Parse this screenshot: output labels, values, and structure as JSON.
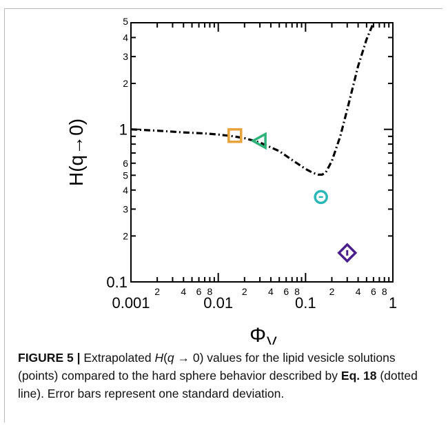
{
  "chart_data": {
    "type": "scatter",
    "xscale": "log",
    "yscale": "log",
    "xlim": [
      0.001,
      1
    ],
    "ylim": [
      0.1,
      5
    ],
    "xlabel": "Φ",
    "xlabel_sub": "V",
    "ylabel": "H(q→0)",
    "x_major_ticks": [
      {
        "value": 0.001,
        "label": "0.001"
      },
      {
        "value": 0.01,
        "label": "0.01"
      },
      {
        "value": 0.1,
        "label": "0.1"
      },
      {
        "value": 1,
        "label": "1"
      }
    ],
    "x_minor_tick_labels": [
      "2",
      "4",
      "6",
      "8"
    ],
    "y_major_ticks": [
      {
        "value": 0.1,
        "label": "0.1"
      },
      {
        "value": 1,
        "label": "1"
      }
    ],
    "y_minor_tick_labels": [
      {
        "value": 0.2,
        "label": "2"
      },
      {
        "value": 0.3,
        "label": "3"
      },
      {
        "value": 0.4,
        "label": "4"
      },
      {
        "value": 0.5,
        "label": "5"
      },
      {
        "value": 0.6,
        "label": "6"
      },
      {
        "value": 2,
        "label": "2"
      },
      {
        "value": 3,
        "label": "3"
      },
      {
        "value": 4,
        "label": "4"
      },
      {
        "value": 5,
        "label": "5"
      }
    ],
    "curve": {
      "style": "dash-dot",
      "x": [
        0.001,
        0.002,
        0.004,
        0.007,
        0.01,
        0.015,
        0.02,
        0.03,
        0.05,
        0.07,
        0.1,
        0.12,
        0.14,
        0.155,
        0.17,
        0.2,
        0.25,
        0.3,
        0.4,
        0.5,
        0.6
      ],
      "y": [
        1.0,
        0.98,
        0.955,
        0.94,
        0.925,
        0.9,
        0.875,
        0.82,
        0.72,
        0.63,
        0.55,
        0.52,
        0.505,
        0.505,
        0.52,
        0.62,
        0.9,
        1.35,
        2.6,
        3.9,
        5.0
      ]
    },
    "points": [
      {
        "x": 0.0155,
        "y": 0.91,
        "marker": "square",
        "color": "#E8A33A"
      },
      {
        "x": 0.03,
        "y": 0.84,
        "marker": "triangle-left",
        "color": "#2DB27A"
      },
      {
        "x": 0.15,
        "y": 0.36,
        "marker": "circle",
        "color": "#2BB7B7"
      },
      {
        "x": 0.3,
        "y": 0.155,
        "marker": "diamond",
        "color": "#4B1F8A"
      }
    ],
    "grid": false
  },
  "caption": {
    "label": "FIGURE 5 |",
    "text_1": " Extrapolated ",
    "math": "H",
    "text_2": "(",
    "math_q": "q",
    "text_3": " → 0) values for the lipid vesicle solutions (points) compared to the hard sphere behavior described by ",
    "eq": "Eq. 18",
    "text_4": " (dotted line). Error bars represent one standard deviation."
  }
}
